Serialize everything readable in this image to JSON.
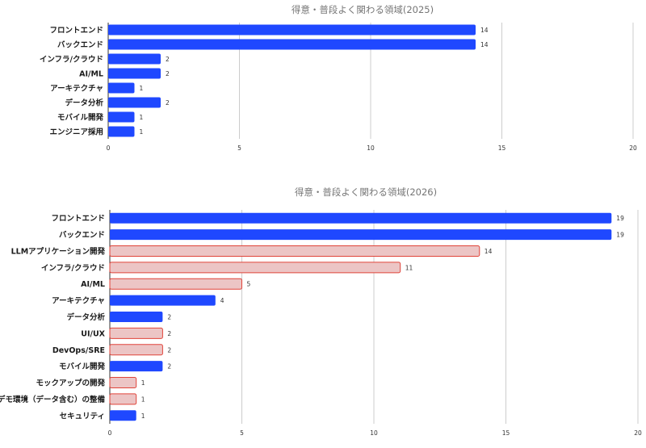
{
  "chart_data": [
    {
      "type": "bar",
      "orientation": "horizontal",
      "title": "得意・普段よく関わる領域(2025)",
      "categories": [
        "フロントエンド",
        "バックエンド",
        "インフラ/クラウド",
        "AI/ML",
        "アーキテクチャ",
        "データ分析",
        "モバイル開発",
        "エンジニア採用"
      ],
      "values": [
        14,
        14,
        2,
        2,
        1,
        2,
        1,
        1
      ],
      "highlight": [
        false,
        false,
        false,
        false,
        false,
        false,
        false,
        false
      ],
      "xlim": [
        0,
        20
      ],
      "xticks": [
        0,
        5,
        10,
        15,
        20
      ],
      "grid": true,
      "colors": {
        "bar": "#1f48ff",
        "highlight_fill": "#ecc5c5",
        "highlight_stroke": "#e0443a"
      }
    },
    {
      "type": "bar",
      "orientation": "horizontal",
      "title": "得意・普段よく関わる領域(2026)",
      "categories": [
        "フロントエンド",
        "バックエンド",
        "LLMアプリケーション開発",
        "インフラ/クラウド",
        "AI/ML",
        "アーキテクチャ",
        "データ分析",
        "UI/UX",
        "DevOps/SRE",
        "モバイル開発",
        "モックアップの開発",
        "デモ環境（データ含む）の整備",
        "セキュリティ"
      ],
      "values": [
        19,
        19,
        14,
        11,
        5,
        4,
        2,
        2,
        2,
        2,
        1,
        1,
        1
      ],
      "highlight": [
        false,
        false,
        true,
        true,
        true,
        false,
        false,
        true,
        true,
        false,
        true,
        true,
        false
      ],
      "xlim": [
        0,
        20
      ],
      "xticks": [
        0,
        5,
        10,
        15,
        20
      ],
      "grid": true,
      "colors": {
        "bar": "#1f48ff",
        "highlight_fill": "#ecc5c5",
        "highlight_stroke": "#e0443a"
      }
    }
  ]
}
